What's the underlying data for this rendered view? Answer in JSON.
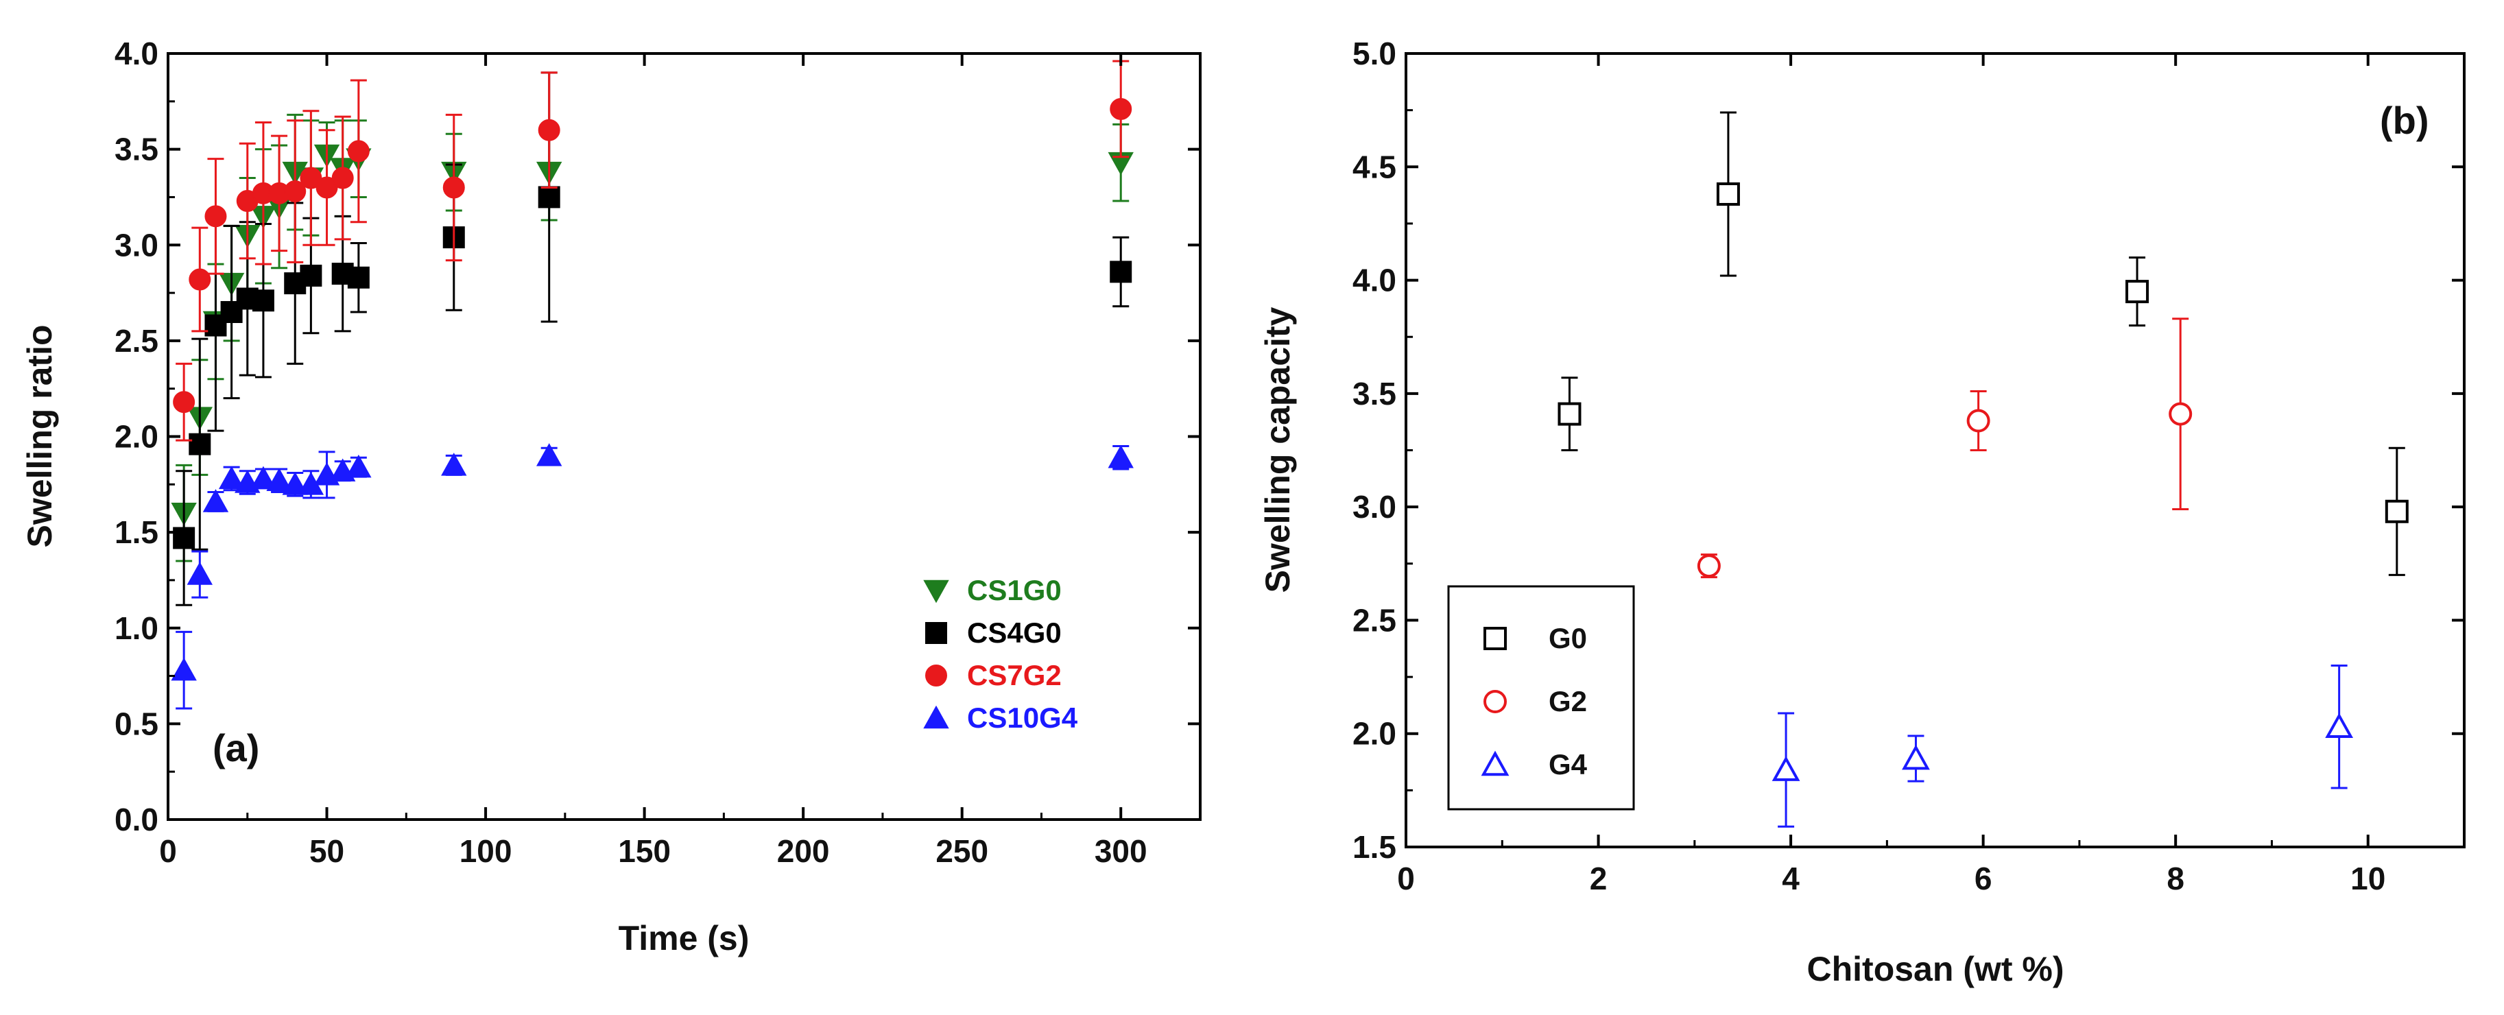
{
  "chart_data": [
    {
      "type": "scatter",
      "panel": "(a)",
      "xlabel": "Time (s)",
      "ylabel": "Swelling ratio",
      "xlim": [
        0,
        325
      ],
      "ylim": [
        0.0,
        4.0
      ],
      "xticks": [
        "0",
        "50",
        "100",
        "150",
        "200",
        "250",
        "300"
      ],
      "yticks": [
        "0.0",
        "0.5",
        "1.0",
        "1.5",
        "2.0",
        "2.5",
        "3.0",
        "3.5",
        "4.0"
      ],
      "legend_position": "lower-right",
      "series": [
        {
          "name": "CS1G0",
          "color": "#1e7d1e",
          "marker": "triangle-down",
          "filled": true,
          "x": [
            5,
            10,
            15,
            20,
            25,
            30,
            35,
            40,
            45,
            50,
            55,
            60,
            90,
            120,
            300
          ],
          "y": [
            1.6,
            2.1,
            2.6,
            2.8,
            3.05,
            3.15,
            3.2,
            3.38,
            3.35,
            3.47,
            3.4,
            3.45,
            3.38,
            3.38,
            3.43
          ],
          "err": [
            0.25,
            0.3,
            0.3,
            0.3,
            0.3,
            0.35,
            0.32,
            0.3,
            0.3,
            0.17,
            0.25,
            0.2,
            0.2,
            0.25,
            0.2
          ]
        },
        {
          "name": "CS4G0",
          "color": "#000000",
          "marker": "square",
          "filled": true,
          "x": [
            5,
            10,
            15,
            20,
            25,
            30,
            40,
            45,
            55,
            60,
            90,
            120,
            300
          ],
          "y": [
            1.47,
            1.96,
            2.58,
            2.65,
            2.72,
            2.71,
            2.8,
            2.84,
            2.85,
            2.83,
            3.04,
            3.25,
            2.86
          ],
          "err": [
            0.35,
            0.55,
            0.55,
            0.45,
            0.4,
            0.4,
            0.42,
            0.3,
            0.3,
            0.18,
            0.38,
            0.65,
            0.18
          ]
        },
        {
          "name": "CS7G2",
          "color": "#e8191c",
          "marker": "circle",
          "filled": true,
          "x": [
            5,
            10,
            15,
            25,
            30,
            35,
            40,
            45,
            50,
            55,
            60,
            90,
            120,
            300
          ],
          "y": [
            2.18,
            2.82,
            3.15,
            3.23,
            3.27,
            3.27,
            3.28,
            3.35,
            3.3,
            3.35,
            3.49,
            3.3,
            3.6,
            3.71
          ],
          "err": [
            0.2,
            0.27,
            0.3,
            0.3,
            0.37,
            0.3,
            0.37,
            0.35,
            0.3,
            0.32,
            0.37,
            0.38,
            0.3,
            0.25
          ]
        },
        {
          "name": "CS10G4",
          "color": "#1a1aff",
          "marker": "triangle-up",
          "filled": true,
          "x": [
            5,
            10,
            15,
            20,
            25,
            30,
            35,
            40,
            45,
            50,
            55,
            60,
            90,
            120,
            300
          ],
          "y": [
            0.78,
            1.28,
            1.66,
            1.78,
            1.76,
            1.78,
            1.77,
            1.75,
            1.75,
            1.8,
            1.82,
            1.84,
            1.85,
            1.9,
            1.89
          ],
          "err": [
            0.2,
            0.12,
            0.05,
            0.06,
            0.06,
            0.05,
            0.06,
            0.06,
            0.07,
            0.12,
            0.05,
            0.05,
            0.05,
            0.04,
            0.06
          ]
        }
      ],
      "panel_label_text": "(a)"
    },
    {
      "type": "scatter",
      "panel": "(b)",
      "xlabel": "Chitosan (wt %)",
      "ylabel": "Swelling capacity",
      "xlim": [
        0,
        11
      ],
      "ylim": [
        1.5,
        5.0
      ],
      "xticks": [
        "0",
        "2",
        "4",
        "6",
        "8",
        "10"
      ],
      "yticks": [
        "1.5",
        "2.0",
        "2.5",
        "3.0",
        "3.5",
        "4.0",
        "4.5",
        "5.0"
      ],
      "legend_position": "lower-left",
      "series": [
        {
          "name": "G0",
          "color": "#000000",
          "marker": "square",
          "filled": false,
          "x": [
            1.7,
            3.35,
            7.6,
            10.3
          ],
          "y": [
            3.41,
            4.38,
            3.95,
            2.98
          ],
          "err": [
            0.16,
            0.36,
            0.15,
            0.28
          ]
        },
        {
          "name": "G2",
          "color": "#e8191c",
          "marker": "circle",
          "filled": false,
          "x": [
            3.15,
            5.95,
            8.05
          ],
          "y": [
            2.74,
            3.38,
            3.41
          ],
          "err": [
            0.05,
            0.13,
            0.42
          ]
        },
        {
          "name": "G4",
          "color": "#1a1aff",
          "marker": "triangle-up",
          "filled": false,
          "x": [
            3.95,
            5.3,
            9.7
          ],
          "y": [
            1.84,
            1.89,
            2.03
          ],
          "err": [
            0.25,
            0.1,
            0.27
          ]
        }
      ],
      "panel_label_text": "(b)"
    }
  ]
}
